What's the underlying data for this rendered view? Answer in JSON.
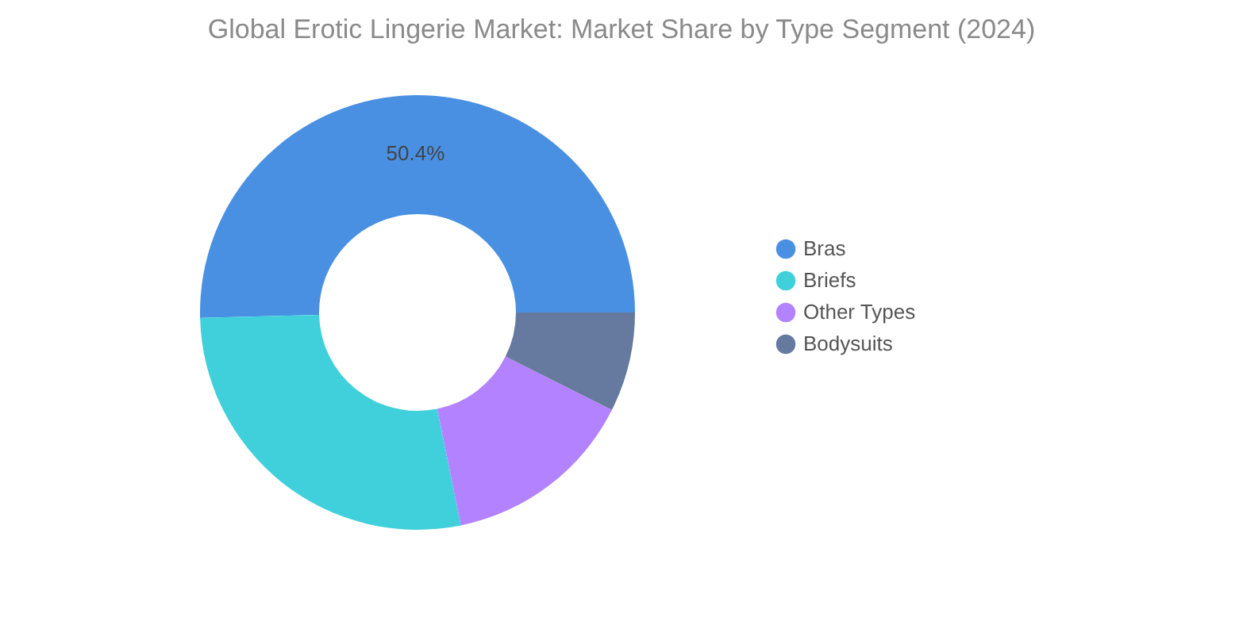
{
  "chart_data": {
    "type": "donut",
    "title": "Global Erotic Lingerie Market: Market Share by Type Segment (2024)",
    "categories": [
      "Bras",
      "Briefs",
      "Other Types",
      "Bodysuits"
    ],
    "values": [
      50.4,
      27.8,
      14.4,
      7.4
    ],
    "colors": [
      "#4a90e2",
      "#40d0dc",
      "#b383ff",
      "#66799e"
    ],
    "value_labels": [
      "50.4%",
      null,
      null,
      null
    ],
    "legend": "right"
  }
}
